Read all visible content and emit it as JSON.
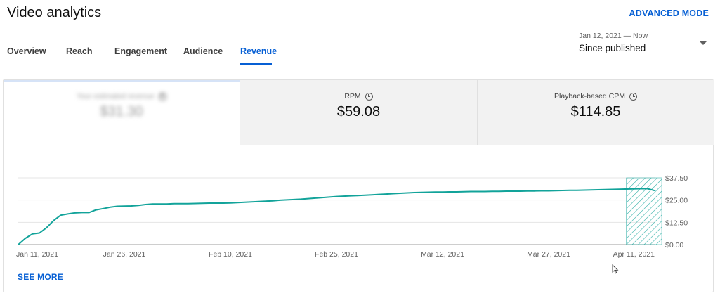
{
  "header": {
    "title": "Video analytics",
    "advanced_mode_label": "ADVANCED MODE"
  },
  "tabs": [
    {
      "label": "Overview",
      "active": false
    },
    {
      "label": "Reach",
      "active": false
    },
    {
      "label": "Engagement",
      "active": false
    },
    {
      "label": "Audience",
      "active": false
    },
    {
      "label": "Revenue",
      "active": true
    }
  ],
  "date_range": {
    "sub_label": "Jan 12, 2021 — Now",
    "main_label": "Since published"
  },
  "metrics": [
    {
      "label": "Your estimated revenue",
      "value": "$31.30",
      "blurred": true
    },
    {
      "label": "RPM",
      "value": "$59.08",
      "blurred": false
    },
    {
      "label": "Playback-based CPM",
      "value": "$114.85",
      "blurred": false
    }
  ],
  "chart_data": {
    "type": "line",
    "title": "",
    "xlabel": "",
    "ylabel": "",
    "y_ticks": [
      "$0.00",
      "$12.50",
      "$25.00",
      "$37.50"
    ],
    "ylim": [
      0,
      37.5
    ],
    "x_ticks": [
      "Jan 11, 2021",
      "Jan 26, 2021",
      "Feb 10, 2021",
      "Feb 25, 2021",
      "Mar 12, 2021",
      "Mar 27, 2021",
      "Apr 11, 2021"
    ],
    "x_start": "2021-01-11",
    "x_end": "2021-04-11",
    "series": [
      {
        "color": "#12a39a",
        "values": [
          0,
          3.5,
          6,
          6.5,
          9.5,
          13.5,
          16.5,
          17.2,
          17.8,
          18,
          18,
          19.5,
          20.2,
          21,
          21.5,
          21.6,
          21.7,
          22,
          22.5,
          22.8,
          22.8,
          22.8,
          23,
          23,
          23,
          23.1,
          23.2,
          23.3,
          23.3,
          23.3,
          23.4,
          23.6,
          23.8,
          24,
          24.2,
          24.4,
          24.6,
          24.9,
          25.1,
          25.3,
          25.5,
          25.8,
          26.1,
          26.4,
          26.7,
          27,
          27.2,
          27.4,
          27.5,
          27.7,
          27.9,
          28.2,
          28.4,
          28.6,
          28.8,
          29,
          29.2,
          29.3,
          29.4,
          29.5,
          29.5,
          29.6,
          29.6,
          29.7,
          29.8,
          29.8,
          29.8,
          29.9,
          29.9,
          30,
          30,
          30,
          30.1,
          30.1,
          30.2,
          30.2,
          30.3,
          30.4,
          30.5,
          30.5,
          30.6,
          30.7,
          30.8,
          30.9,
          31,
          31.1,
          31.2,
          31.3,
          31.4,
          31.4,
          30.3
        ]
      }
    ],
    "partial_period_start": "2021-04-07",
    "partial_period_end": "2021-04-12",
    "grid": true
  },
  "see_more_label": "SEE MORE",
  "colors": {
    "accent": "#065fd4",
    "line": "#12a39a"
  }
}
